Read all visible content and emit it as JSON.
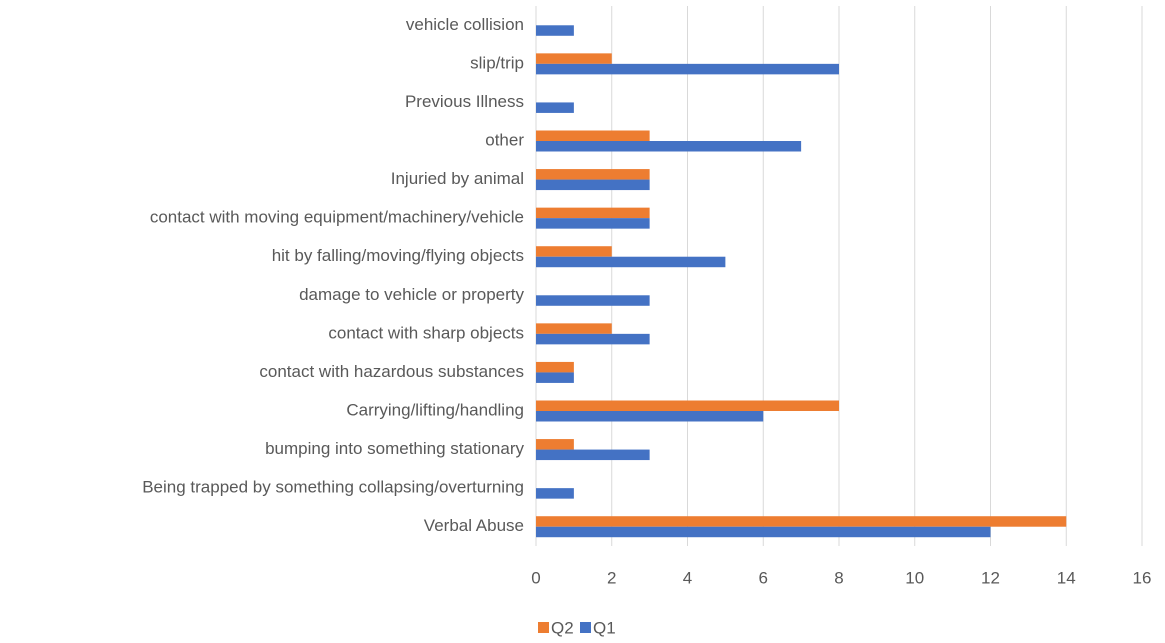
{
  "chart_data": {
    "type": "barh",
    "categories": [
      "vehicle collision",
      "slip/trip",
      "Previous Illness",
      "other",
      "Injuried by animal",
      "contact with moving equipment/machinery/vehicle",
      "hit by falling/moving/flying objects",
      "damage to vehicle or property",
      "contact with sharp objects",
      "contact with hazardous substances",
      "Carrying/lifting/handling",
      "bumping into something stationary",
      "Being trapped by something collapsing/overturning",
      "Verbal Abuse"
    ],
    "series": [
      {
        "name": "Q2",
        "color": "#ed7d31",
        "values": [
          0,
          2,
          0,
          3,
          3,
          3,
          2,
          0,
          2,
          1,
          8,
          1,
          0,
          14
        ]
      },
      {
        "name": "Q1",
        "color": "#4472c4",
        "values": [
          1,
          8,
          1,
          7,
          3,
          3,
          5,
          3,
          3,
          1,
          6,
          3,
          1,
          12
        ]
      }
    ],
    "xlim": [
      0,
      16
    ],
    "xticks": [
      0,
      2,
      4,
      6,
      8,
      10,
      12,
      14,
      16
    ],
    "grid": true,
    "legend": "bottom"
  }
}
